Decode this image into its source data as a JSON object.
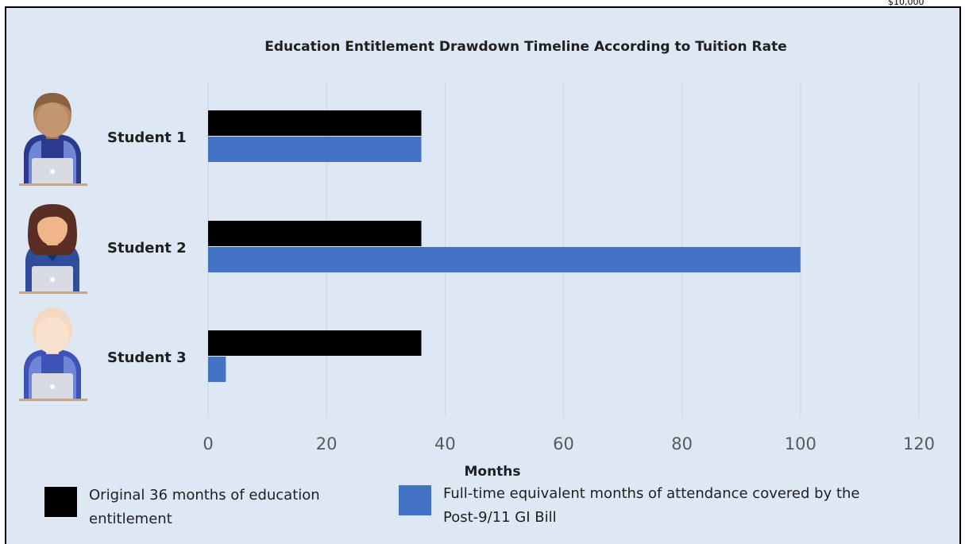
{
  "corner_fragment": "$10,000",
  "chart_data": {
    "type": "bar",
    "orientation": "horizontal",
    "title": "Education Entitlement Drawdown Timeline According to Tuition Rate",
    "xlabel": "Months",
    "ylabel": "",
    "xlim": [
      0,
      120
    ],
    "xticks": [
      "0",
      "20",
      "40",
      "60",
      "80",
      "100",
      "120"
    ],
    "grid": true,
    "legend_position": "bottom",
    "categories": [
      "Student 1",
      "Student 2",
      "Student 3"
    ],
    "series": [
      {
        "name": "Original 36 months of education entitlement",
        "values": [
          36,
          36,
          36
        ],
        "color": "#000000"
      },
      {
        "name": "Full-time equivalent months of attendance covered by the Post-9/11 GI Bill",
        "values": [
          36,
          100,
          3
        ],
        "color": "#4472c4"
      }
    ]
  },
  "legend": {
    "item1": {
      "line1": "Original 36 months of education",
      "line2": "entitlement"
    },
    "item2": {
      "line1": "Full-time equivalent months of attendance covered by the",
      "line2": "Post-9/11 GI Bill"
    }
  },
  "icons": [
    "student-1-avatar-icon",
    "student-2-avatar-icon",
    "student-3-avatar-icon"
  ],
  "colors": {
    "background": "#dde8f4",
    "gridline": "#d0d6de",
    "tick_text": "#595959"
  }
}
